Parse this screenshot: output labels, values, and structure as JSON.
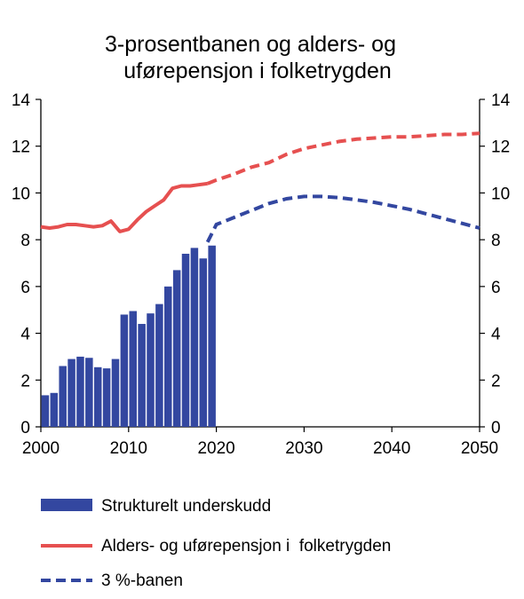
{
  "chart_data": {
    "type": "bar+line",
    "title_lines": [
      "3-prosentbanen og alders- og",
      "uførepensjon i folketrygden"
    ],
    "xlim": [
      2000,
      2050
    ],
    "ylim": [
      0,
      14
    ],
    "x_ticks": [
      "2000",
      "2010",
      "2020",
      "2030",
      "2040",
      "2050"
    ],
    "y_ticks": [
      "0",
      "2",
      "4",
      "6",
      "8",
      "10",
      "12",
      "14"
    ],
    "colors": {
      "bars": "#3347A0",
      "pension": "#E65050",
      "three_pct": "#3347A0"
    },
    "series": [
      {
        "name": "Strukturelt underskudd",
        "type": "bar",
        "x": [
          2000,
          2001,
          2002,
          2003,
          2004,
          2005,
          2006,
          2007,
          2008,
          2009,
          2010,
          2011,
          2012,
          2013,
          2014,
          2015,
          2016,
          2017,
          2018,
          2019
        ],
        "values": [
          1.35,
          1.45,
          2.6,
          2.9,
          3.0,
          2.95,
          2.55,
          2.5,
          2.9,
          4.8,
          4.95,
          4.4,
          4.85,
          5.25,
          6.0,
          6.7,
          7.4,
          7.65,
          7.2,
          7.75
        ]
      },
      {
        "name": "Alders- og uførepensjon i  folketrygden",
        "type": "line",
        "style": "solid-then-dashed",
        "dash_from": 2019,
        "x": [
          2000,
          2001,
          2002,
          2003,
          2004,
          2005,
          2006,
          2007,
          2008,
          2009,
          2010,
          2011,
          2012,
          2013,
          2014,
          2015,
          2016,
          2017,
          2018,
          2019,
          2020,
          2022,
          2024,
          2026,
          2028,
          2030,
          2032,
          2034,
          2036,
          2038,
          2040,
          2042,
          2044,
          2046,
          2048,
          2050
        ],
        "values": [
          8.55,
          8.5,
          8.55,
          8.65,
          8.65,
          8.6,
          8.55,
          8.6,
          8.8,
          8.35,
          8.45,
          8.85,
          9.2,
          9.45,
          9.7,
          10.2,
          10.3,
          10.3,
          10.35,
          10.4,
          10.55,
          10.8,
          11.1,
          11.3,
          11.65,
          11.9,
          12.05,
          12.2,
          12.3,
          12.35,
          12.4,
          12.4,
          12.45,
          12.5,
          12.5,
          12.55
        ]
      },
      {
        "name": "3 %-banen",
        "type": "line",
        "style": "dashed",
        "x": [
          2019,
          2020,
          2022,
          2024,
          2026,
          2028,
          2030,
          2032,
          2034,
          2036,
          2038,
          2040,
          2042,
          2044,
          2046,
          2048,
          2050
        ],
        "values": [
          7.9,
          8.65,
          8.95,
          9.25,
          9.55,
          9.75,
          9.85,
          9.85,
          9.8,
          9.7,
          9.6,
          9.45,
          9.3,
          9.1,
          8.9,
          8.7,
          8.5
        ]
      }
    ]
  }
}
